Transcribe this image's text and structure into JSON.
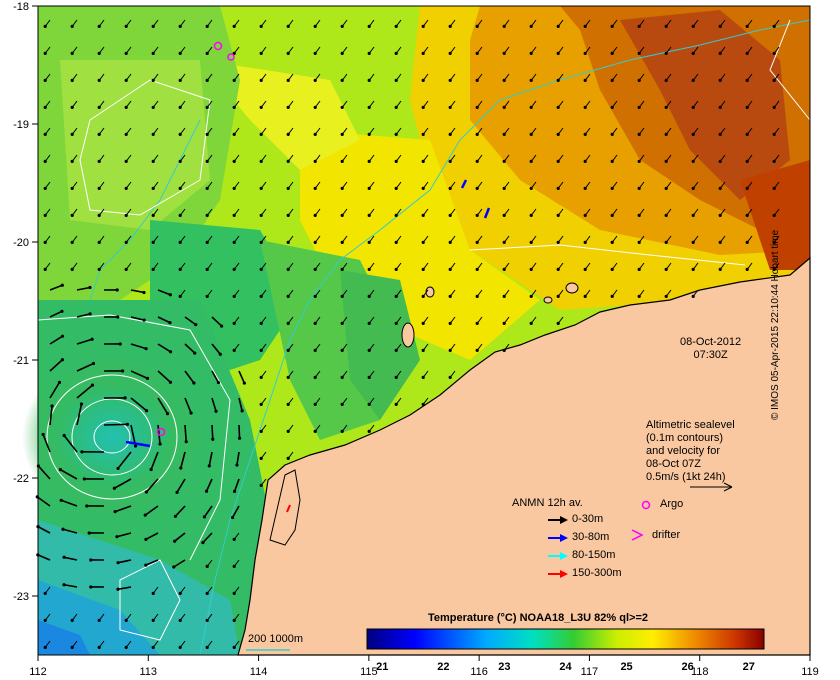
{
  "map": {
    "timestamp_date": "08-Oct-2012",
    "timestamp_time": "07:30Z",
    "lon_ticks": [
      "112",
      "113",
      "114",
      "115",
      "116",
      "117",
      "118",
      "119"
    ],
    "lat_ticks": [
      "-18",
      "-19",
      "-20",
      "-21",
      "-22",
      "-23"
    ],
    "lon_range": [
      112,
      119
    ],
    "lat_range": [
      -23.5,
      -18
    ],
    "colors": {
      "land": "#f9c8a0",
      "coastline": "#000000",
      "bathy": "#33cccc",
      "contour": "#ffffff"
    }
  },
  "annotation": {
    "lines": [
      "Altimetric sealevel",
      "(0.1m contours)",
      "and velocity for",
      "08-Oct 07Z",
      "0.5m/s (1kt 24h)"
    ]
  },
  "legend": {
    "title": "ANMN 12h av.",
    "items": [
      {
        "label": "0-30m",
        "color": "#000000"
      },
      {
        "label": "30-80m",
        "color": "#0000ff"
      },
      {
        "label": "80-150m",
        "color": "#00ffff"
      },
      {
        "label": "150-300m",
        "color": "#ff0000"
      }
    ],
    "argo_label": "Argo",
    "drifter_label": "drifter",
    "argo_color": "#ff00ff"
  },
  "bathy_label": "200  1000m",
  "colorbar": {
    "title": "Temperature (°C) NOAA18_L3U 82% ql>=2",
    "ticks": [
      "21",
      "22",
      "23",
      "24",
      "25",
      "26",
      "27"
    ],
    "range": [
      20.75,
      27.25
    ]
  },
  "side_note": "© IMOS 05-Apr-2015 22:10:44 Hobart time",
  "eddy_center": [
    112.6,
    -21.6
  ]
}
